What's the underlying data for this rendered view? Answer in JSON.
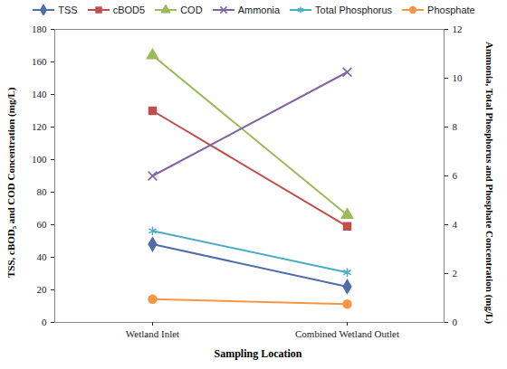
{
  "chart_data": {
    "type": "line",
    "categories": [
      "Wetland Inlet",
      "Combined Wetland Outlet"
    ],
    "xlabel": "Sampling Location",
    "ylabel": "TSS, cBOD₅ and COD Concentration (mg/L)",
    "y2label": "Ammonia, Total Phosphorus and Phosphate Concentration (mg/L)",
    "ylim": [
      0,
      180
    ],
    "yticks": [
      0,
      20,
      40,
      60,
      80,
      100,
      120,
      140,
      160,
      180
    ],
    "y2lim": [
      0,
      12
    ],
    "y2ticks": [
      0,
      2,
      4,
      6,
      8,
      10,
      12
    ],
    "legend": "top",
    "grid": false,
    "series": [
      {
        "name": "TSS",
        "color": "#4F6EA8",
        "marker": "diamond",
        "values": [
          48,
          22
        ]
      },
      {
        "name": "cBOD5",
        "color": "#C0504D",
        "marker": "square",
        "values": [
          130,
          59
        ]
      },
      {
        "name": "COD",
        "color": "#9BBB59",
        "marker": "triangle",
        "values": [
          164,
          66
        ]
      },
      {
        "name": "Ammonia",
        "color": "#8064A2",
        "marker": "times",
        "axis": "y2",
        "values": [
          6.0,
          10.25
        ]
      },
      {
        "name": "Total Phosphorus",
        "color": "#4BACC6",
        "marker": "asterisk",
        "axis": "y2",
        "values": [
          3.75,
          2.05
        ]
      },
      {
        "name": "Phosphate",
        "color": "#F79646",
        "marker": "circle",
        "axis": "y2",
        "values": [
          0.95,
          0.75
        ]
      }
    ]
  }
}
